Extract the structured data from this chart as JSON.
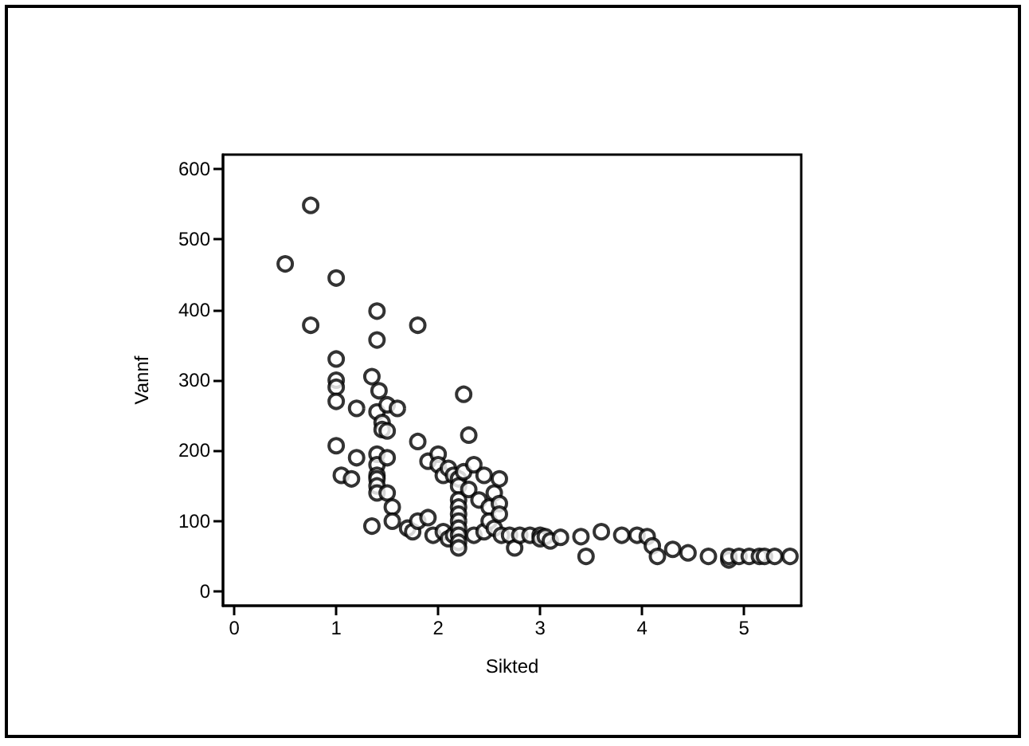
{
  "chart_data": {
    "type": "scatter",
    "xlabel": "Sikted",
    "ylabel": "Vannf",
    "x": [
      0.5,
      0.75,
      0.75,
      1,
      1,
      1,
      1,
      1,
      1,
      1.05,
      1.15,
      1.2,
      1.2,
      1.35,
      1.35,
      1.4,
      1.4,
      1.4,
      1.42,
      1.45,
      1.45,
      1.4,
      1.4,
      1.4,
      1.4,
      1.4,
      1.4,
      1.5,
      1.5,
      1.5,
      1.5,
      1.55,
      1.55,
      1.6,
      1.7,
      1.75,
      1.8,
      1.8,
      1.8,
      1.9,
      1.9,
      1.95,
      2,
      2,
      2.05,
      2.05,
      2.1,
      2.1,
      2.15,
      2.15,
      2.2,
      2.2,
      2.2,
      2.2,
      2.2,
      2.2,
      2.2,
      2.2,
      2.2,
      2.2,
      2.25,
      2.25,
      2.3,
      2.3,
      2.35,
      2.35,
      2.4,
      2.45,
      2.45,
      2.5,
      2.5,
      2.55,
      2.55,
      2.6,
      2.6,
      2.6,
      2.62,
      2.7,
      2.75,
      2.8,
      2.9,
      3,
      3,
      3.05,
      3.1,
      3.2,
      3.4,
      3.45,
      3.6,
      3.8,
      3.95,
      4.05,
      4.1,
      4.15,
      4.3,
      4.45,
      4.65,
      4.85,
      4.85,
      4.95,
      5.05,
      5.15,
      5.2,
      5.3,
      5.45
    ],
    "values": [
      465,
      548,
      378,
      445,
      330,
      300,
      290,
      270,
      207,
      165,
      160,
      260,
      190,
      305,
      93,
      255,
      357,
      398,
      285,
      240,
      230,
      195,
      180,
      165,
      160,
      150,
      140,
      265,
      228,
      190,
      140,
      120,
      100,
      260,
      90,
      85,
      100,
      378,
      213,
      105,
      185,
      80,
      195,
      180,
      165,
      85,
      175,
      75,
      165,
      80,
      160,
      150,
      130,
      120,
      110,
      100,
      90,
      80,
      70,
      62,
      280,
      170,
      222,
      145,
      180,
      80,
      130,
      165,
      85,
      120,
      100,
      140,
      90,
      160,
      125,
      110,
      80,
      80,
      62,
      80,
      80,
      80,
      75,
      78,
      72,
      77,
      78,
      50,
      85,
      80,
      80,
      78,
      65,
      50,
      60,
      55,
      50,
      45,
      50,
      50,
      50,
      50,
      50,
      50,
      50
    ],
    "color": "#000000",
    "marker": "circle",
    "xlim": [
      -0.11,
      5.56
    ],
    "xticks": [
      0,
      1,
      2,
      3,
      4,
      5
    ],
    "ylim": [
      -20,
      620
    ],
    "yticks": [
      0,
      100,
      200,
      300,
      400,
      500,
      600
    ],
    "grid": false
  }
}
